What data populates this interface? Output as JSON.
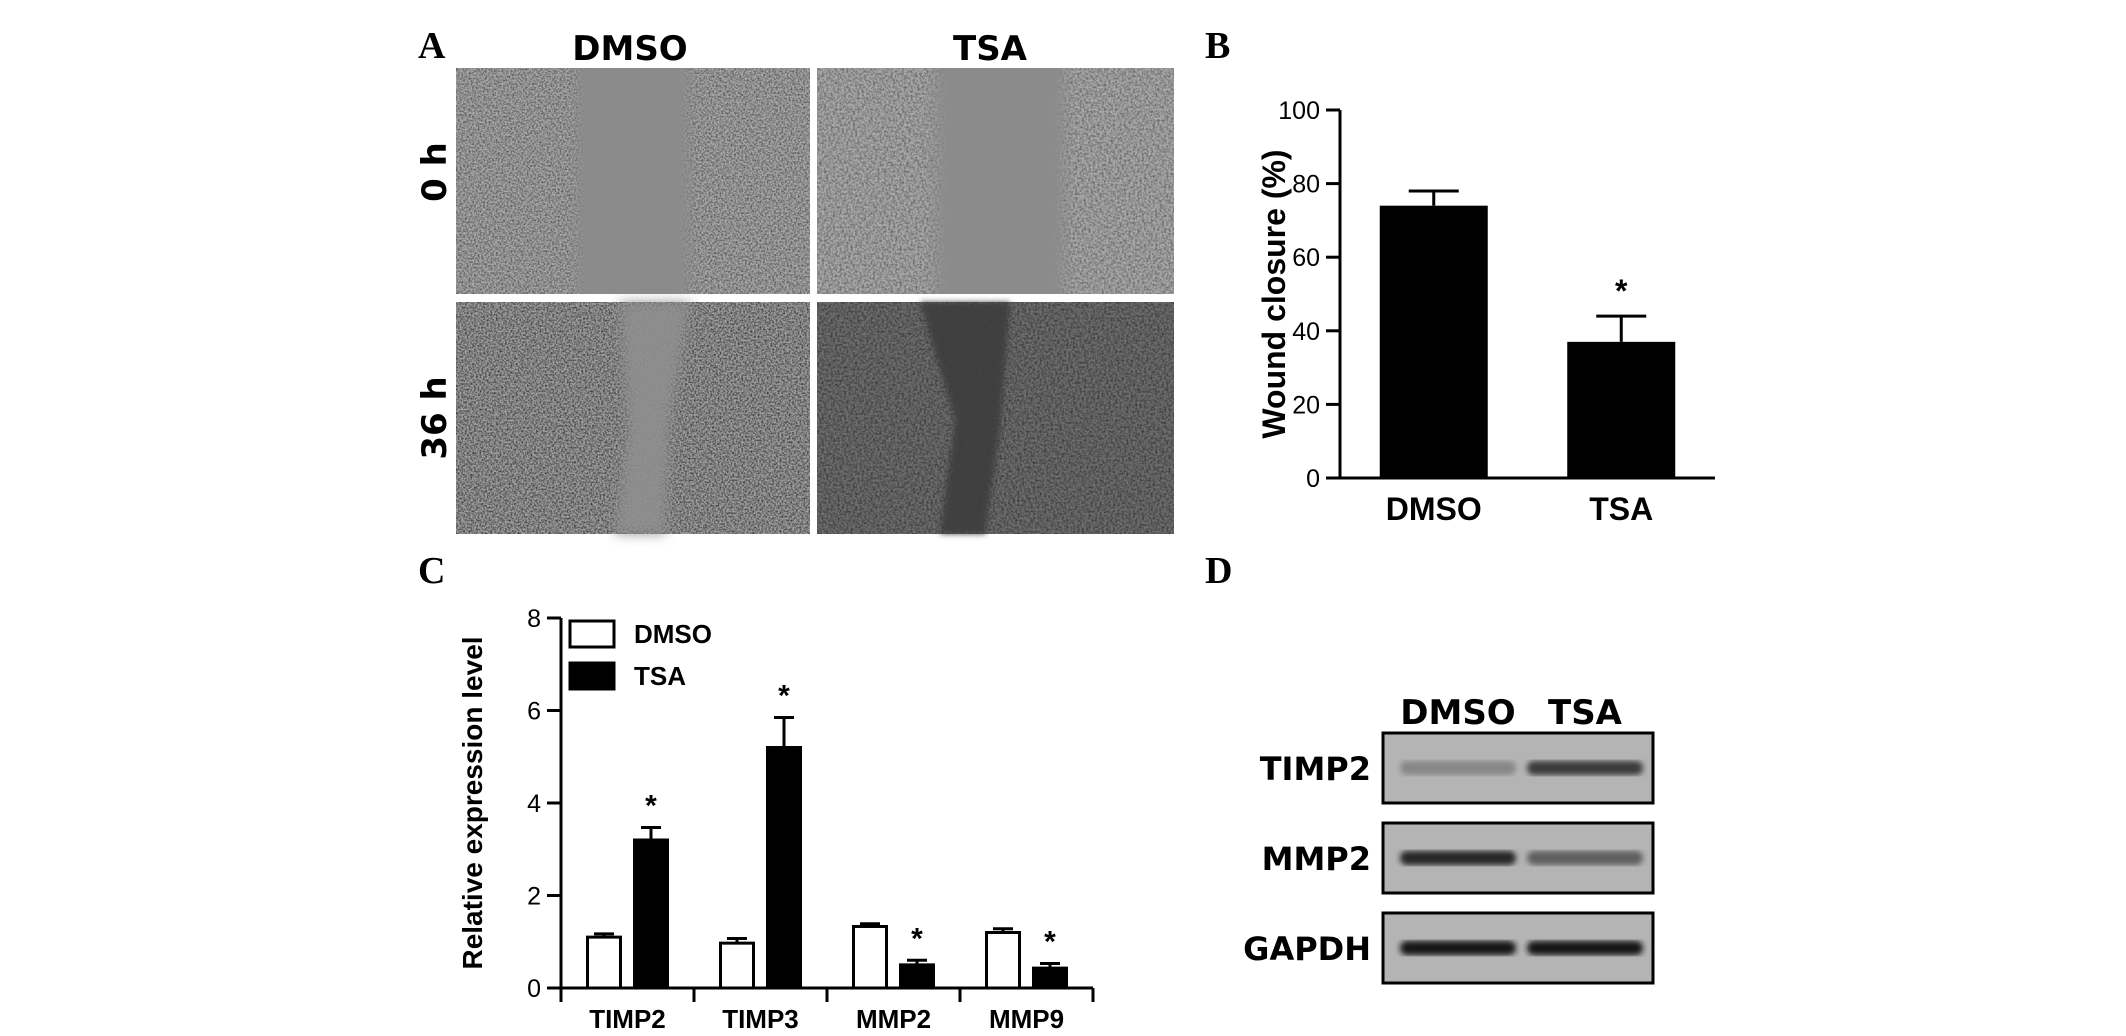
{
  "panels": {
    "a": {
      "letter": "A",
      "columns": [
        "DMSO",
        "TSA"
      ],
      "rows": [
        "0 h",
        "36 h"
      ]
    },
    "b": {
      "letter": "B"
    },
    "c": {
      "letter": "C"
    },
    "d": {
      "letter": "D",
      "lanes": [
        "DMSO",
        "TSA"
      ],
      "bands": [
        {
          "label": "TIMP2",
          "intensity": [
            0.35,
            0.75
          ]
        },
        {
          "label": "MMP2",
          "intensity": [
            0.85,
            0.55
          ]
        },
        {
          "label": "GAPDH",
          "intensity": [
            0.95,
            0.95
          ]
        }
      ]
    }
  },
  "chart_data": [
    {
      "type": "bar",
      "panel": "B",
      "categories": [
        "DMSO",
        "TSA"
      ],
      "values": [
        74,
        37
      ],
      "errors": [
        4,
        7
      ],
      "significance": [
        "",
        "*"
      ],
      "ylabel": "Wound closure (%)",
      "yticks": [
        0,
        20,
        40,
        60,
        80,
        100
      ],
      "ylim": [
        0,
        100
      ],
      "color": "#000000"
    },
    {
      "type": "bar",
      "panel": "C",
      "categories": [
        "TIMP2",
        "TIMP3",
        "MMP2",
        "MMP9"
      ],
      "series": [
        {
          "name": "DMSO",
          "values": [
            1.1,
            0.97,
            1.33,
            1.2
          ],
          "errors": [
            0.07,
            0.1,
            0.06,
            0.08
          ],
          "fill": "#ffffff",
          "significance": [
            "",
            "",
            "",
            ""
          ]
        },
        {
          "name": "TSA",
          "values": [
            3.2,
            5.2,
            0.5,
            0.43
          ],
          "errors": [
            0.27,
            0.65,
            0.1,
            0.1
          ],
          "fill": "#000000",
          "significance": [
            "*",
            "*",
            "*",
            "*"
          ]
        }
      ],
      "ylabel": "Relative expression level",
      "yticks": [
        0,
        2,
        4,
        6,
        8
      ],
      "ylim": [
        0,
        8
      ],
      "legend": "top-left"
    }
  ]
}
